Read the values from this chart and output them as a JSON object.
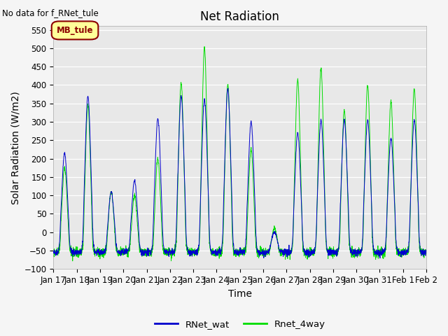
{
  "title": "Net Radiation",
  "top_left_text": "No data for f_RNet_tule",
  "legend_box_text": "MB_tule",
  "xlabel": "Time",
  "ylabel": "Solar Radiation (W/m2)",
  "ylim": [
    -100,
    560
  ],
  "yticks": [
    -100,
    -50,
    0,
    50,
    100,
    150,
    200,
    250,
    300,
    350,
    400,
    450,
    500,
    550
  ],
  "color_blue": "#0000cc",
  "color_green": "#00dd00",
  "background_color": "#e8e8e8",
  "plot_bg": "#e8e8e8",
  "legend_box_bg": "#ffff99",
  "legend_box_border": "#8b0000",
  "n_days": 16,
  "points_per_day": 144,
  "title_fontsize": 12,
  "axis_fontsize": 10,
  "tick_fontsize": 8.5
}
